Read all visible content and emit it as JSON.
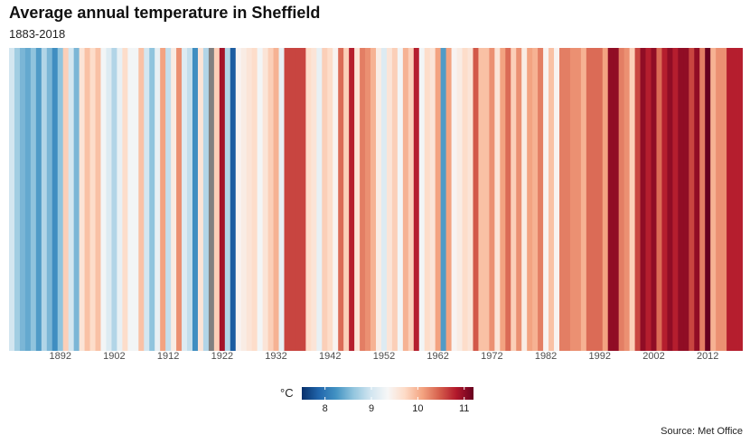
{
  "chart_data": {
    "type": "heatmap",
    "title": "Average annual temperature in Sheffield",
    "subtitle": "1883-2018",
    "caption": "Source: Met Office",
    "x": {
      "start_year": 1883,
      "end_year": 2018,
      "tick_labels": [
        "1892",
        "1902",
        "1912",
        "1922",
        "1932",
        "1942",
        "1952",
        "1962",
        "1972",
        "1982",
        "1992",
        "2002",
        "2012"
      ],
      "tick_years": [
        1892,
        1902,
        1912,
        1922,
        1932,
        1942,
        1952,
        1962,
        1972,
        1982,
        1992,
        2002,
        2012
      ]
    },
    "legend": {
      "title": "°C",
      "range": [
        7.5,
        11.2
      ],
      "tick_labels": [
        "8",
        "9",
        "10",
        "11"
      ],
      "tick_values": [
        8,
        9,
        10,
        11
      ],
      "placement": "bottom"
    },
    "colormap": [
      "#08306b",
      "#2166ac",
      "#4393c3",
      "#92c5de",
      "#d1e5f0",
      "#f7f7f7",
      "#fddbc7",
      "#f4a582",
      "#d6604d",
      "#b2182b",
      "#67001f"
    ],
    "missing_color": "#808080",
    "values": [
      9.0,
      8.7,
      8.5,
      8.4,
      8.6,
      8.3,
      8.8,
      8.5,
      8.2,
      8.6,
      9.8,
      9.0,
      8.5,
      9.6,
      9.9,
      9.7,
      9.9,
      9.3,
      9.1,
      8.8,
      9.2,
      9.7,
      9.3,
      9.3,
      9.9,
      9.0,
      8.6,
      9.2,
      10.1,
      8.9,
      9.5,
      10.2,
      9.1,
      8.9,
      8.2,
      9.6,
      8.8,
      null,
      9.8,
      10.9,
      8.8,
      7.8,
      9.4,
      9.5,
      9.6,
      9.7,
      9.3,
      9.6,
      9.8,
      10.0,
      9.2,
      10.6,
      10.6,
      10.6,
      10.6,
      9.7,
      9.6,
      9.2,
      9.8,
      9.7,
      9.4,
      10.4,
      9.8,
      10.8,
      9.6,
      10.3,
      10.2,
      10.0,
      9.5,
      9.1,
      9.6,
      9.8,
      9.3,
      10.0,
      9.8,
      10.8,
      9.3,
      9.7,
      9.6,
      10.1,
      8.3,
      10.1,
      9.4,
      9.5,
      9.7,
      9.6,
      10.5,
      9.9,
      9.9,
      10.2,
      9.6,
      10.1,
      10.4,
      9.8,
      10.2,
      9.5,
      10.1,
      10.0,
      10.3,
      9.4,
      9.9,
      9.4,
      10.3,
      10.3,
      10.2,
      10.2,
      10.0,
      10.4,
      10.4,
      10.4,
      10.1,
      11.0,
      11.0,
      10.3,
      10.2,
      9.8,
      10.6,
      11.0,
      10.8,
      11.0,
      10.4,
      10.8,
      11.0,
      10.8,
      11.0,
      11.0,
      10.6,
      11.0,
      10.3,
      11.4,
      10.0,
      10.2,
      10.2,
      10.8,
      10.8,
      10.8
    ]
  }
}
